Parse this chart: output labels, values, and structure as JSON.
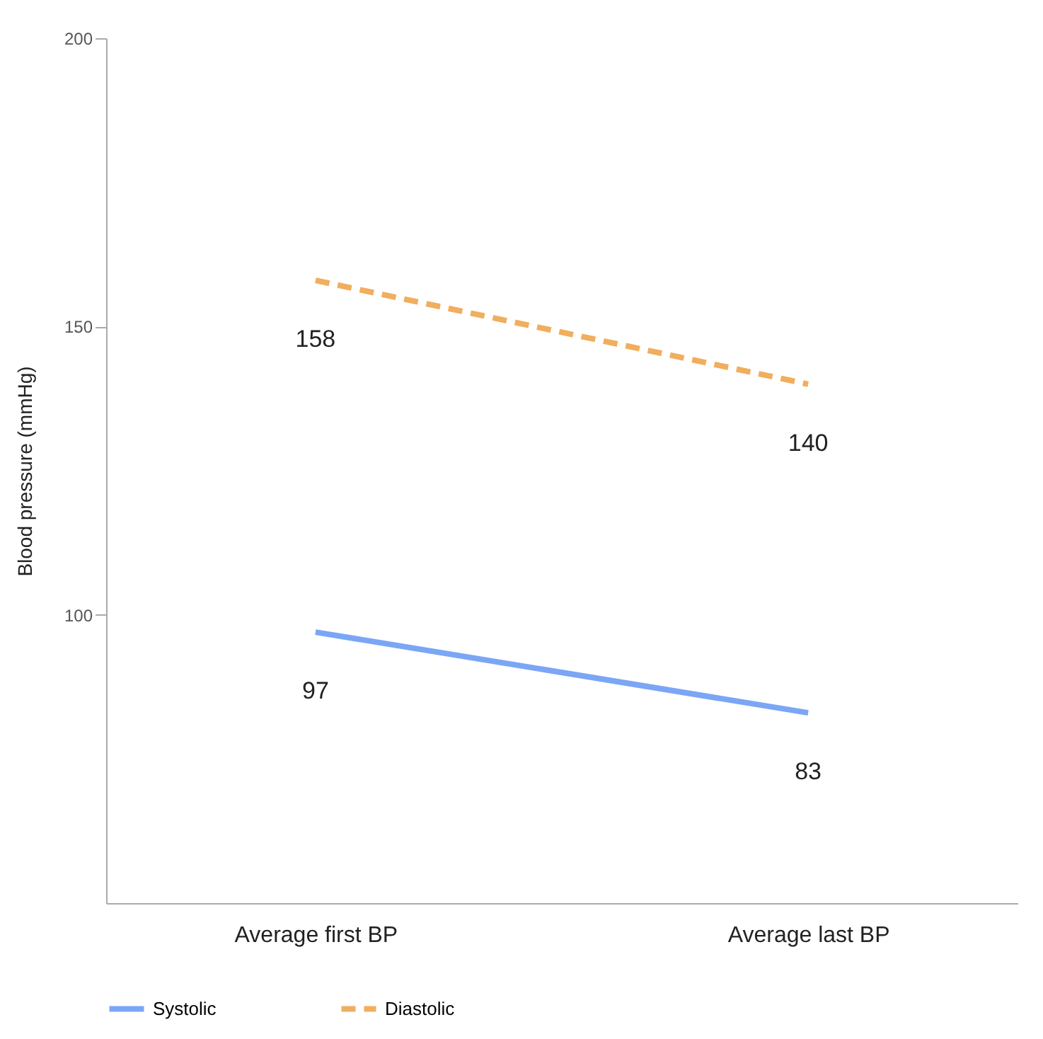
{
  "chart_data": {
    "type": "line",
    "categories": [
      "Average first BP",
      "Average last BP"
    ],
    "series": [
      {
        "name": "Systolic",
        "color": "#7aa6f5",
        "line_style": "solid",
        "values": [
          97,
          83
        ]
      },
      {
        "name": "Diastolic",
        "color": "#f0ae5e",
        "line_style": "dashed",
        "values": [
          158,
          140
        ]
      }
    ],
    "ylabel": "Blood pressure (mmHg)",
    "ylim": [
      50,
      200
    ],
    "yticks": [
      100,
      150,
      200
    ],
    "grid": false,
    "legend": "bottom",
    "marker": "none",
    "data_labels": true
  }
}
